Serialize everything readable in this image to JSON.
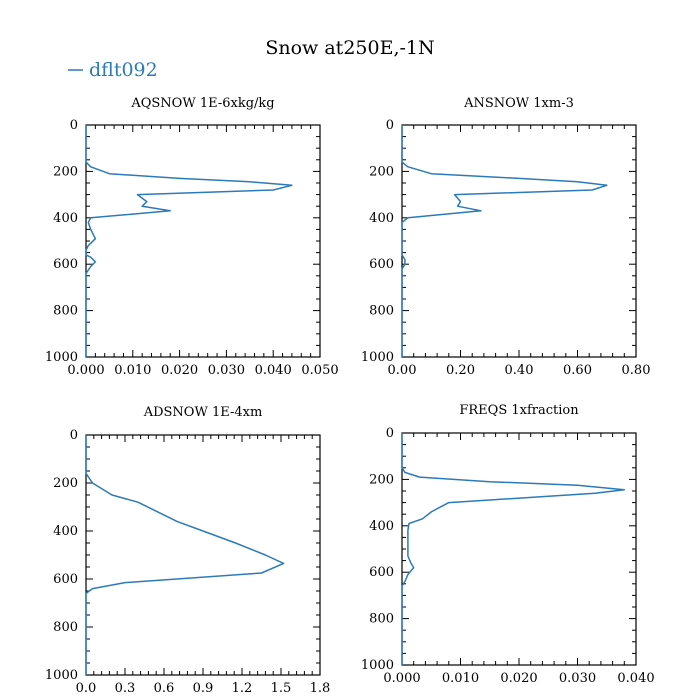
{
  "figure_title": "Snow at250E,-1N",
  "legend": {
    "label": "dflt092",
    "color": "#2b7bb9"
  },
  "chart_data": [
    {
      "type": "line",
      "title": "AQSNOW  1E-6xkg/kg",
      "xlim": [
        0,
        0.05
      ],
      "xticks": [
        "0.000",
        "0.010",
        "0.020",
        "0.030",
        "0.040",
        "0.050"
      ],
      "ylim": [
        1000,
        0
      ],
      "yticks": [
        "0",
        "200",
        "400",
        "600",
        "800",
        "1000"
      ],
      "series": [
        {
          "name": "dflt092",
          "x": [
            0,
            0,
            0.001,
            0.005,
            0.02,
            0.035,
            0.044,
            0.04,
            0.011,
            0.013,
            0.012,
            0.018,
            0.001,
            0.0005,
            0.001,
            0.002,
            0.0005,
            0,
            0,
            0.001,
            0.002,
            0.001,
            0,
            0,
            0,
            0
          ],
          "y": [
            0,
            160,
            180,
            210,
            230,
            245,
            260,
            280,
            300,
            330,
            350,
            370,
            400,
            420,
            450,
            490,
            520,
            540,
            560,
            570,
            590,
            610,
            640,
            700,
            850,
            1000
          ]
        }
      ]
    },
    {
      "type": "line",
      "title": "ANSNOW  1xm-3",
      "xlim": [
        0,
        0.8
      ],
      "xticks": [
        "0.00",
        "0.20",
        "0.40",
        "0.60",
        "0.80"
      ],
      "ylim": [
        1000,
        0
      ],
      "yticks": [
        "0",
        "200",
        "400",
        "600",
        "800",
        "1000"
      ],
      "series": [
        {
          "name": "dflt092",
          "x": [
            0,
            0,
            0.02,
            0.1,
            0.4,
            0.6,
            0.7,
            0.65,
            0.18,
            0.2,
            0.19,
            0.27,
            0.02,
            0,
            0,
            0.01,
            0.01,
            0,
            0,
            0
          ],
          "y": [
            0,
            160,
            180,
            210,
            230,
            245,
            260,
            280,
            300,
            330,
            350,
            370,
            400,
            420,
            560,
            580,
            600,
            620,
            800,
            1000
          ]
        }
      ]
    },
    {
      "type": "line",
      "title": "ADSNOW  1E-4xm",
      "xlim": [
        0,
        1.8
      ],
      "xticks": [
        "0.0",
        "0.3",
        "0.6",
        "0.9",
        "1.2",
        "1.5",
        "1.8"
      ],
      "ylim": [
        1000,
        0
      ],
      "yticks": [
        "0",
        "200",
        "400",
        "600",
        "800",
        "1000"
      ],
      "series": [
        {
          "name": "dflt092",
          "x": [
            0,
            0,
            0.05,
            0.2,
            0.4,
            0.55,
            0.7,
            0.9,
            1.15,
            1.38,
            1.52,
            1.35,
            0.3,
            0.05,
            0,
            0,
            0
          ],
          "y": [
            0,
            160,
            200,
            250,
            280,
            320,
            360,
            400,
            450,
            500,
            535,
            575,
            615,
            640,
            660,
            800,
            1000
          ]
        }
      ]
    },
    {
      "type": "line",
      "title": "FREQS  1xfraction",
      "xlim": [
        0,
        0.04
      ],
      "xticks": [
        "0.000",
        "0.010",
        "0.020",
        "0.030",
        "0.040"
      ],
      "ylim": [
        1000,
        0
      ],
      "yticks": [
        "0",
        "200",
        "400",
        "600",
        "800",
        "1000"
      ],
      "series": [
        {
          "name": "dflt092",
          "x": [
            0,
            0,
            0.0005,
            0.003,
            0.015,
            0.03,
            0.038,
            0.033,
            0.008,
            0.0065,
            0.005,
            0.0035,
            0.0012,
            0.001,
            0.001,
            0.001,
            0.0015,
            0.002,
            0.001,
            0.0005,
            0,
            0,
            0
          ],
          "y": [
            0,
            150,
            170,
            190,
            210,
            225,
            245,
            260,
            300,
            320,
            340,
            370,
            390,
            420,
            480,
            530,
            560,
            580,
            610,
            640,
            660,
            800,
            1000
          ]
        }
      ]
    }
  ]
}
